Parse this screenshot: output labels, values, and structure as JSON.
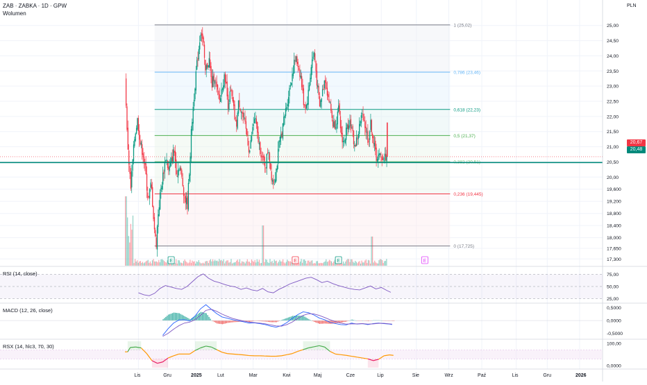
{
  "header": {
    "symbol_line": "ZAB · ZABKA · 1D · GPW",
    "volume_label": "Wolumen",
    "currency": "PLN"
  },
  "colors": {
    "up": "#089981",
    "down": "#f23645",
    "grid": "#f0f3fa",
    "rsi": "#7e57c2",
    "macd": "#2962ff",
    "signal": "#7e57c2",
    "rsx_up": "#4caf50",
    "rsx_down": "#e91e63",
    "rsx_mid": "#ff9800",
    "fib_1": "#787b86",
    "fib_0786": "#64b5f6",
    "fib_0618": "#089981",
    "fib_05": "#4caf50",
    "fib_0382": "#81c784",
    "fib_0236": "#f23645",
    "fib_0": "#787b86",
    "support": "#00897b"
  },
  "chart_data": [
    {
      "type": "candlestick",
      "name": "price",
      "ylim": [
        17.1,
        25.2
      ],
      "y_ticks": [
        "25,00",
        "24,50",
        "24,00",
        "23,50",
        "23,00",
        "22,50",
        "22,00",
        "21,50",
        "21,00",
        "20,50",
        "20,00",
        "19,600",
        "19,200",
        "18,800",
        "18,400",
        "18,000",
        "17,650",
        "17,300"
      ],
      "y_tick_values": [
        25.0,
        24.5,
        24.0,
        23.5,
        23.0,
        22.5,
        22.0,
        21.5,
        21.0,
        20.5,
        20.0,
        19.6,
        19.2,
        18.8,
        18.4,
        18.0,
        17.65,
        17.3
      ],
      "x_ticks": [
        "Lis",
        "Gru",
        "2025",
        "Lut",
        "Mar",
        "Kwi",
        "Maj",
        "Cze",
        "Lip",
        "Sie",
        "Wrz",
        "Paź",
        "Lis",
        "Gru",
        "2026"
      ],
      "x_tick_days": [
        20,
        63,
        104,
        143,
        190,
        240,
        286,
        334,
        380,
        432,
        480,
        529,
        580,
        626,
        674
      ],
      "path_days": [
        0,
        2,
        4,
        6,
        8,
        10,
        14,
        18,
        22,
        26,
        30,
        34,
        38,
        42,
        44,
        46,
        48,
        52,
        56,
        60,
        64,
        68,
        72,
        76,
        80,
        84,
        88,
        92,
        96,
        98,
        100,
        104,
        108,
        112,
        116,
        118,
        120,
        124,
        128,
        132,
        136,
        140,
        144,
        148,
        152,
        156,
        160,
        164,
        168,
        172,
        176,
        180,
        184,
        188,
        192,
        196,
        200,
        204,
        208,
        212,
        216,
        220,
        224,
        228,
        232,
        236,
        240,
        244,
        248,
        252,
        256,
        260,
        264,
        268,
        272,
        276,
        280,
        284,
        288,
        292,
        296,
        300,
        304,
        308,
        312,
        316,
        320,
        324,
        328,
        332,
        336,
        340,
        344,
        348,
        352,
        356,
        360,
        364,
        368,
        372,
        376,
        380,
        384,
        388,
        392,
        394,
        396,
        398,
        400
      ],
      "path_close": [
        23.3,
        21.6,
        20.9,
        20.2,
        19.6,
        20.3,
        21.4,
        21.9,
        21.1,
        20.8,
        20.1,
        19.2,
        19.8,
        18.6,
        18.0,
        17.8,
        18.7,
        19.5,
        20.1,
        20.7,
        20.2,
        20.5,
        20.9,
        20.1,
        20.4,
        19.9,
        19.3,
        19.1,
        20.7,
        21.6,
        22.2,
        23.3,
        24.1,
        24.9,
        24.3,
        23.4,
        23.6,
        23.9,
        23.0,
        23.4,
        22.8,
        22.5,
        23.1,
        23.3,
        22.4,
        22.8,
        22.3,
        21.6,
        22.5,
        22.2,
        21.8,
        21.4,
        20.8,
        21.5,
        22.0,
        21.3,
        20.9,
        20.5,
        20.4,
        21.0,
        20.1,
        19.8,
        20.3,
        21.1,
        21.5,
        22.0,
        22.5,
        23.0,
        23.5,
        23.9,
        23.7,
        23.3,
        22.5,
        22.3,
        22.9,
        23.8,
        24.1,
        23.1,
        22.3,
        22.8,
        23.3,
        22.7,
        22.3,
        21.7,
        21.8,
        22.2,
        21.4,
        21.1,
        21.6,
        21.9,
        21.5,
        21.0,
        21.3,
        21.8,
        22.1,
        21.6,
        21.2,
        21.8,
        21.1,
        20.67,
        20.67,
        20.67,
        20.67,
        20.67,
        20.67,
        20.67,
        20.67,
        20.67
      ],
      "last_day": 388,
      "last_price": 20.67,
      "last_label": "20,67",
      "support_price": 20.48,
      "support_label": "20,48",
      "fib_levels": [
        {
          "ratio": 1.0,
          "price": 25.02,
          "label": "1 (25,02)"
        },
        {
          "ratio": 0.786,
          "price": 23.46,
          "label": "0,786 (23,46)"
        },
        {
          "ratio": 0.618,
          "price": 22.23,
          "label": "0,618 (22,23)"
        },
        {
          "ratio": 0.5,
          "price": 21.37,
          "label": "0,5 (21,37)"
        },
        {
          "ratio": 0.382,
          "price": 20.51,
          "label": "0,382 (20,51)"
        },
        {
          "ratio": 0.236,
          "price": 19.445,
          "label": "0,236 (19,445)"
        },
        {
          "ratio": 0.0,
          "price": 17.725,
          "label": "0 (17,725)"
        }
      ],
      "events": [
        {
          "day": 68,
          "letter": "E",
          "kind": "earnings-up"
        },
        {
          "day": 252,
          "letter": "E",
          "kind": "earnings-down"
        },
        {
          "day": 316,
          "letter": "E",
          "kind": "earnings-up"
        },
        {
          "day": 444,
          "letter": "E",
          "kind": "earnings-future"
        }
      ]
    },
    {
      "type": "line",
      "name": "RSI (14, close)",
      "label": "RSI (14, close)",
      "ylim": [
        20,
        80
      ],
      "bands": [
        75,
        50,
        25
      ],
      "y_ticks": [
        "75,00",
        "50,00",
        "25,00"
      ],
      "y_tick_values": [
        75,
        50,
        25
      ],
      "days": [
        20,
        28,
        36,
        44,
        52,
        60,
        68,
        76,
        84,
        92,
        100,
        108,
        116,
        124,
        132,
        140,
        148,
        156,
        164,
        172,
        180,
        188,
        196,
        204,
        212,
        220,
        228,
        236,
        244,
        252,
        260,
        268,
        276,
        284,
        292,
        300,
        308,
        316,
        324,
        332,
        340,
        348,
        356,
        364,
        372,
        380,
        388,
        394
      ],
      "values": [
        37,
        33,
        31,
        36,
        46,
        52,
        49,
        46,
        44,
        50,
        60,
        70,
        76,
        67,
        61,
        58,
        54,
        51,
        49,
        44,
        47,
        43,
        41,
        46,
        39,
        37,
        44,
        49,
        55,
        59,
        63,
        67,
        69,
        64,
        58,
        61,
        56,
        52,
        49,
        46,
        44,
        43,
        47,
        51,
        45,
        48,
        42,
        38
      ]
    },
    {
      "type": "line",
      "name": "MACD (12, 26, close)",
      "label": "MACD (12, 26, close)",
      "ylim": [
        -0.65,
        0.6
      ],
      "y_ticks": [
        "0,5000",
        "0,0000",
        "-0,5000"
      ],
      "y_tick_values": [
        0.5,
        0.0,
        -0.5
      ],
      "days": [
        56,
        64,
        72,
        80,
        88,
        96,
        104,
        112,
        120,
        128,
        136,
        144,
        152,
        160,
        168,
        176,
        184,
        192,
        200,
        208,
        216,
        224,
        232,
        240,
        248,
        256,
        264,
        272,
        280,
        288,
        296,
        304,
        312,
        320,
        328,
        336,
        344,
        352,
        360,
        368,
        376,
        384,
        392,
        396
      ],
      "macd": [
        -0.58,
        -0.32,
        -0.1,
        0.02,
        0.03,
        -0.02,
        0.18,
        0.46,
        0.62,
        0.44,
        0.27,
        0.14,
        0.09,
        0.03,
        -0.01,
        -0.05,
        -0.1,
        -0.09,
        -0.12,
        -0.16,
        -0.22,
        -0.26,
        -0.2,
        -0.08,
        0.08,
        0.23,
        0.34,
        0.31,
        0.22,
        0.1,
        0.03,
        -0.07,
        -0.12,
        -0.16,
        -0.17,
        -0.1,
        -0.14,
        -0.12,
        -0.16,
        -0.12,
        -0.1,
        -0.12,
        -0.14,
        -0.16
      ],
      "signal": [
        -0.62,
        -0.5,
        -0.34,
        -0.2,
        -0.1,
        -0.06,
        0.03,
        0.2,
        0.4,
        0.44,
        0.36,
        0.25,
        0.16,
        0.08,
        0.03,
        -0.02,
        -0.06,
        -0.08,
        -0.1,
        -0.13,
        -0.17,
        -0.21,
        -0.22,
        -0.16,
        -0.06,
        0.08,
        0.2,
        0.27,
        0.26,
        0.2,
        0.12,
        0.03,
        -0.04,
        -0.1,
        -0.14,
        -0.13,
        -0.13,
        -0.12,
        -0.14,
        -0.13,
        -0.11,
        -0.11,
        -0.13,
        -0.14
      ]
    },
    {
      "type": "line",
      "name": "RSX (14, hlc3, 70, 30)",
      "label": "RSX (14, hlc3, 70, 30)",
      "ylim": [
        -10,
        110
      ],
      "thresholds": [
        70,
        30
      ],
      "y_ticks": [
        "100,00",
        "0,0000"
      ],
      "y_tick_values": [
        100,
        0
      ],
      "days": [
        0,
        4,
        8,
        16,
        24,
        32,
        40,
        48,
        56,
        64,
        72,
        80,
        88,
        96,
        104,
        112,
        120,
        128,
        136,
        144,
        152,
        160,
        168,
        176,
        184,
        192,
        200,
        208,
        216,
        224,
        232,
        240,
        248,
        256,
        264,
        272,
        280,
        288,
        296,
        304,
        312,
        320,
        328,
        336,
        344,
        352,
        360,
        368,
        376,
        384,
        392,
        398
      ],
      "values": [
        62,
        62,
        82,
        84,
        80,
        55,
        22,
        10,
        16,
        34,
        44,
        52,
        52,
        52,
        68,
        80,
        88,
        84,
        72,
        60,
        54,
        52,
        50,
        48,
        45,
        44,
        44,
        43,
        42,
        42,
        44,
        49,
        54,
        64,
        72,
        80,
        85,
        90,
        84,
        64,
        52,
        49,
        46,
        42,
        38,
        34,
        30,
        22,
        28,
        44,
        48,
        46
      ]
    }
  ]
}
